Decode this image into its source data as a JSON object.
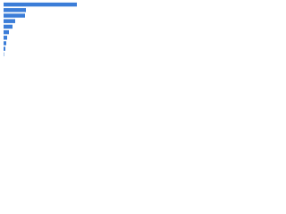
{
  "chart_data": {
    "type": "barh",
    "categories": [
      null,
      null,
      null,
      null,
      null,
      null,
      null,
      null,
      null,
      null
    ],
    "values": [
      82,
      25,
      24,
      13,
      10,
      6,
      4,
      3,
      2,
      1
    ],
    "colors": [
      "#3b7dd8",
      "#3b7dd8",
      "#3b7dd8",
      "#3b7dd8",
      "#3b7dd8",
      "#3b7dd8",
      "#3b7dd8",
      "#3b7dd8",
      "#3b7dd8",
      "#a9c5ea"
    ],
    "xlim": [
      0,
      85
    ]
  }
}
